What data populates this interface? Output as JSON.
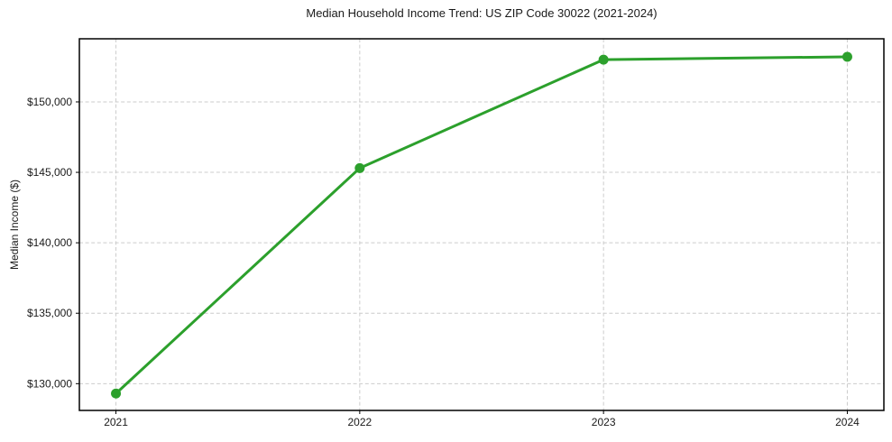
{
  "chart_data": {
    "type": "line",
    "title": "Median Household Income Trend: US ZIP Code 30022 (2021-2024)",
    "xlabel": "",
    "ylabel": "Median Income ($)",
    "x": [
      2021,
      2022,
      2023,
      2024
    ],
    "series": [
      {
        "name": "Median Household Income",
        "values": [
          129300,
          145300,
          153000,
          153200
        ]
      }
    ],
    "xticks": {
      "values": [
        2021,
        2022,
        2023,
        2024
      ],
      "labels": [
        "2021",
        "2022",
        "2023",
        "2024"
      ]
    },
    "yticks": {
      "values": [
        130000,
        135000,
        140000,
        145000,
        150000
      ],
      "labels": [
        "$130,000",
        "$135,000",
        "$140,000",
        "$145,000",
        "$150,000"
      ]
    },
    "xlim": [
      2020.85,
      2024.15
    ],
    "ylim": [
      128100,
      154480
    ],
    "grid": true,
    "legend": "none",
    "colors": {
      "line": "#2ca02c",
      "marker": "#2ca02c",
      "grid": "#cccccc",
      "spine": "#000000",
      "text": "#1a1a1a",
      "background": "#ffffff"
    }
  }
}
